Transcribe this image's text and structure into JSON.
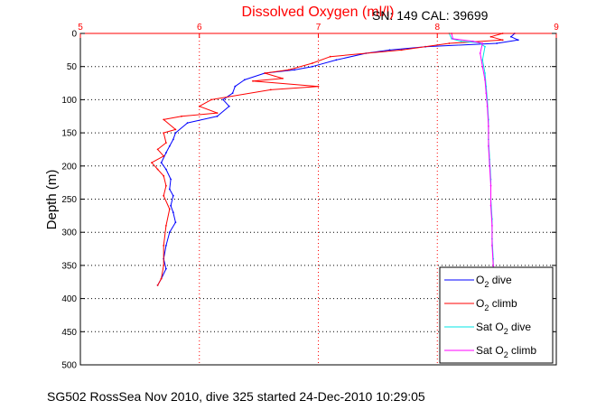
{
  "chart_data": {
    "type": "line",
    "title": "Dissolved Oxygen (ml/l)",
    "annotation": "SN: 149  CAL: 39699",
    "ylabel": "Depth (m)",
    "footer": "SG502 RossSea Nov 2010, dive 325 started 24-Dec-2010 10:29:05",
    "xlim": [
      5,
      9
    ],
    "ylim": [
      0,
      500
    ],
    "y_reversed": true,
    "x_axis_position": "top",
    "x_ticks": [
      "5",
      "6",
      "7",
      "8",
      "9"
    ],
    "y_ticks": [
      "0",
      "50",
      "100",
      "150",
      "200",
      "250",
      "300",
      "350",
      "400",
      "450",
      "500"
    ],
    "grid": true,
    "legend_position": "bottom-right",
    "colors": {
      "title": "#ff0000",
      "x_axis": "#ff0000",
      "dive": "#0000ff",
      "climb": "#ff0000",
      "sat_dive": "#00e5e5",
      "sat_climb": "#ff00ff"
    },
    "series": [
      {
        "label_main": "O",
        "label_sub": "2",
        "label_rest": " dive",
        "color": "#0000ff",
        "points": [
          [
            8.65,
            0
          ],
          [
            8.62,
            5
          ],
          [
            8.68,
            10
          ],
          [
            8.5,
            15
          ],
          [
            7.9,
            20
          ],
          [
            7.6,
            25
          ],
          [
            7.4,
            30
          ],
          [
            7.15,
            40
          ],
          [
            6.95,
            50
          ],
          [
            6.8,
            55
          ],
          [
            6.55,
            60
          ],
          [
            6.38,
            70
          ],
          [
            6.3,
            80
          ],
          [
            6.28,
            90
          ],
          [
            6.2,
            100
          ],
          [
            6.25,
            110
          ],
          [
            6.15,
            125
          ],
          [
            5.9,
            135
          ],
          [
            5.8,
            150
          ],
          [
            5.78,
            160
          ],
          [
            5.75,
            170
          ],
          [
            5.72,
            180
          ],
          [
            5.68,
            195
          ],
          [
            5.72,
            205
          ],
          [
            5.76,
            220
          ],
          [
            5.75,
            235
          ],
          [
            5.78,
            245
          ],
          [
            5.76,
            260
          ],
          [
            5.78,
            270
          ],
          [
            5.8,
            285
          ],
          [
            5.75,
            300
          ],
          [
            5.72,
            320
          ],
          [
            5.7,
            340
          ],
          [
            5.72,
            355
          ],
          [
            5.68,
            370
          ],
          [
            5.65,
            380
          ]
        ]
      },
      {
        "label_main": "O",
        "label_sub": "2",
        "label_rest": " climb",
        "color": "#ff0000",
        "points": [
          [
            8.55,
            0
          ],
          [
            8.45,
            5
          ],
          [
            8.55,
            10
          ],
          [
            8.1,
            15
          ],
          [
            7.7,
            25
          ],
          [
            7.1,
            35
          ],
          [
            6.95,
            45
          ],
          [
            6.75,
            55
          ],
          [
            6.55,
            60
          ],
          [
            6.7,
            68
          ],
          [
            6.45,
            72
          ],
          [
            7.0,
            80
          ],
          [
            6.6,
            85
          ],
          [
            6.1,
            100
          ],
          [
            6.0,
            110
          ],
          [
            6.15,
            120
          ],
          [
            5.85,
            125
          ],
          [
            5.7,
            130
          ],
          [
            5.8,
            145
          ],
          [
            5.7,
            150
          ],
          [
            5.72,
            165
          ],
          [
            5.65,
            175
          ],
          [
            5.7,
            185
          ],
          [
            5.6,
            195
          ],
          [
            5.65,
            205
          ],
          [
            5.7,
            215
          ],
          [
            5.72,
            230
          ],
          [
            5.7,
            245
          ],
          [
            5.75,
            265
          ],
          [
            5.72,
            290
          ],
          [
            5.7,
            320
          ],
          [
            5.7,
            350
          ],
          [
            5.68,
            370
          ],
          [
            5.65,
            380
          ]
        ]
      },
      {
        "label_main": "Sat O",
        "label_sub": "2",
        "label_rest": " dive",
        "color": "#00e5e5",
        "points": [
          [
            8.1,
            0
          ],
          [
            8.12,
            8
          ],
          [
            8.2,
            12
          ],
          [
            8.35,
            14
          ],
          [
            8.4,
            20
          ],
          [
            8.38,
            40
          ],
          [
            8.4,
            60
          ],
          [
            8.41,
            80
          ],
          [
            8.42,
            100
          ],
          [
            8.43,
            130
          ],
          [
            8.43,
            160
          ],
          [
            8.44,
            190
          ],
          [
            8.45,
            220
          ],
          [
            8.45,
            250
          ],
          [
            8.46,
            280
          ],
          [
            8.46,
            310
          ],
          [
            8.47,
            340
          ],
          [
            8.47,
            360
          ]
        ]
      },
      {
        "label_main": "Sat O",
        "label_sub": "2",
        "label_rest": " climb",
        "color": "#ff00ff",
        "points": [
          [
            8.12,
            0
          ],
          [
            8.13,
            8
          ],
          [
            8.3,
            12
          ],
          [
            8.38,
            15
          ],
          [
            8.36,
            30
          ],
          [
            8.38,
            50
          ],
          [
            8.4,
            70
          ],
          [
            8.41,
            90
          ],
          [
            8.42,
            110
          ],
          [
            8.43,
            140
          ],
          [
            8.43,
            170
          ],
          [
            8.44,
            200
          ],
          [
            8.45,
            230
          ],
          [
            8.45,
            260
          ],
          [
            8.46,
            290
          ],
          [
            8.46,
            320
          ],
          [
            8.47,
            350
          ],
          [
            8.47,
            360
          ]
        ]
      }
    ]
  }
}
